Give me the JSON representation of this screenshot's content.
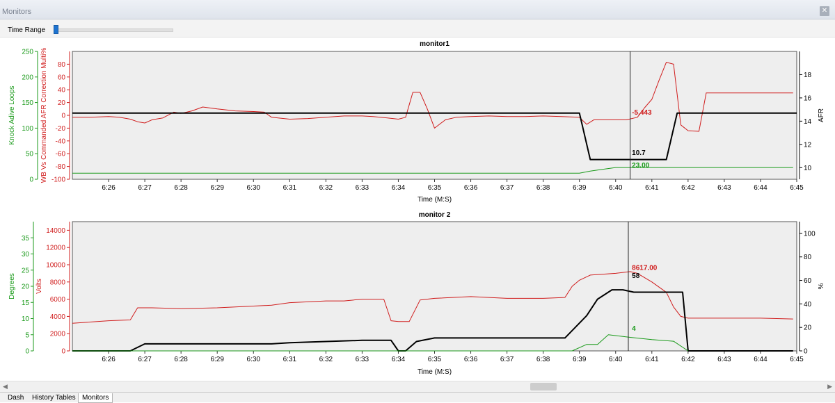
{
  "window": {
    "title": "Monitors"
  },
  "icons": {
    "close": "close-icon"
  },
  "time_range": {
    "label": "Time Range",
    "value": 0.0
  },
  "tabs": [
    {
      "label": "Dash",
      "active": false
    },
    {
      "label": "History Tables",
      "active": false
    },
    {
      "label": "Monitors",
      "active": true
    }
  ],
  "chart_data": [
    {
      "type": "line",
      "title": "monitor1",
      "xlabel": "Time (M:S)",
      "x_ticks": [
        "6:26",
        "6:27",
        "6:28",
        "6:29",
        "6:30",
        "6:31",
        "6:32",
        "6:33",
        "6:34",
        "6:35",
        "6:36",
        "6:37",
        "6:38",
        "6:39",
        "6:40",
        "6:41",
        "6:42",
        "6:43",
        "6:44",
        "6:45"
      ],
      "x_range": [
        385,
        405
      ],
      "cursor_x": 400.4,
      "grid": false,
      "axes": [
        {
          "id": "knock",
          "side": "left",
          "label": "Knock Adive Loops",
          "color": "#1a9a1a",
          "ylim": [
            0,
            250
          ],
          "ticks": [
            0,
            50,
            100,
            150,
            200,
            250
          ]
        },
        {
          "id": "wb",
          "side": "left",
          "label": "WB Vs Commanded AFR Correction Multi%",
          "color": "#d01c1c",
          "ylim": [
            -100,
            100
          ],
          "ticks": [
            -100,
            -80,
            -60,
            -40,
            -20,
            0,
            20,
            40,
            60,
            80
          ]
        },
        {
          "id": "afr",
          "side": "right",
          "label": "AFR",
          "color": "#000000",
          "ylim": [
            9,
            20
          ],
          "ticks": [
            10,
            12,
            14,
            16,
            18
          ]
        }
      ],
      "series": [
        {
          "axis": "wb",
          "color": "#d01c1c",
          "width": 1,
          "x": [
            385,
            385.5,
            386,
            386.3,
            386.6,
            386.8,
            387,
            387.2,
            387.5,
            387.8,
            388,
            388.3,
            388.6,
            389,
            389.5,
            390,
            390.3,
            390.5,
            391,
            391.5,
            392,
            392.5,
            393,
            393.3,
            393.7,
            394,
            394.2,
            394.4,
            394.6,
            394.8,
            395,
            395.3,
            395.6,
            396,
            396.5,
            397,
            397.5,
            398,
            398.5,
            399,
            399.2,
            399.4,
            399.6,
            400,
            400.3,
            400.6,
            400.8,
            401,
            401.2,
            401.4,
            401.6,
            401.8,
            402,
            402.3,
            402.5,
            402.8,
            403,
            404,
            404.9
          ],
          "y": [
            -3,
            -3,
            -2,
            -3,
            -6,
            -10,
            -12,
            -7,
            -4,
            5,
            3,
            7,
            13,
            10,
            7,
            6,
            5,
            -3,
            -6,
            -5,
            -3,
            -1,
            -1,
            -2,
            -4,
            -6,
            -3,
            36,
            36,
            10,
            -20,
            -7,
            -3,
            -2,
            -1,
            -2,
            -2,
            -1,
            -2,
            -3,
            -14,
            -7,
            -7,
            -7,
            -7,
            -3,
            12,
            25,
            55,
            83,
            80,
            -15,
            -24,
            -25,
            35,
            35,
            35,
            35,
            35
          ]
        },
        {
          "axis": "afr",
          "color": "#000000",
          "width": 2,
          "x": [
            385,
            399.0,
            399.3,
            400.0,
            401.0,
            401.4,
            401.7,
            402.0,
            405
          ],
          "y": [
            14.7,
            14.7,
            10.7,
            10.7,
            10.7,
            10.7,
            14.7,
            14.7,
            14.7
          ]
        },
        {
          "axis": "knock",
          "color": "#1a9a1a",
          "width": 1,
          "x": [
            385,
            399.0,
            399.3,
            399.6,
            400.0,
            400.5,
            402.0,
            404.9
          ],
          "y": [
            12,
            12,
            16,
            19,
            23,
            23,
            23,
            23
          ]
        }
      ],
      "annotations": [
        {
          "text": "-5.443",
          "color": "#d01c1c",
          "x": 400.45,
          "y": 1,
          "axis": "wb"
        },
        {
          "text": "10.7",
          "color": "#000000",
          "x": 400.45,
          "y": 11.1,
          "axis": "afr"
        },
        {
          "text": "23.00",
          "color": "#1a9a1a",
          "x": 400.45,
          "y": 23,
          "axis": "knock"
        }
      ]
    },
    {
      "type": "line",
      "title": "monitor 2",
      "xlabel": "Time (M:S)",
      "x_ticks": [
        "6:26",
        "6:27",
        "6:28",
        "6:29",
        "6:30",
        "6:31",
        "6:32",
        "6:33",
        "6:34",
        "6:35",
        "6:36",
        "6:37",
        "6:38",
        "6:39",
        "6:40",
        "6:41",
        "6:42",
        "6:43",
        "6:44",
        "6:45"
      ],
      "x_range": [
        385,
        405
      ],
      "cursor_x": 400.35,
      "grid": false,
      "axes": [
        {
          "id": "deg",
          "side": "left",
          "label": "Degrees",
          "color": "#1a9a1a",
          "ylim": [
            0,
            40
          ],
          "ticks": [
            0,
            5,
            10,
            15,
            20,
            25,
            30,
            35
          ]
        },
        {
          "id": "volts",
          "side": "left",
          "label": "Volts",
          "color": "#d01c1c",
          "ylim": [
            0,
            15000
          ],
          "ticks": [
            0,
            2000,
            4000,
            6000,
            8000,
            10000,
            12000,
            14000
          ]
        },
        {
          "id": "pct",
          "side": "right",
          "label": "%",
          "color": "#000000",
          "ylim": [
            0,
            110
          ],
          "ticks": [
            0,
            20,
            40,
            60,
            80,
            100
          ]
        }
      ],
      "series": [
        {
          "axis": "volts",
          "color": "#d01c1c",
          "width": 1,
          "x": [
            385,
            386,
            386.6,
            386.8,
            387.2,
            388,
            389,
            390,
            390.5,
            391,
            392,
            392.5,
            393,
            393.5,
            393.6,
            393.8,
            394,
            394.3,
            394.6,
            395,
            396,
            397,
            398,
            398.6,
            398.8,
            399,
            399.3,
            400,
            400.4,
            400.6,
            401.0,
            401.4,
            401.6,
            401.8,
            402,
            403,
            404,
            404.9
          ],
          "y": [
            3200,
            3500,
            3600,
            5000,
            5000,
            4900,
            5000,
            5200,
            5300,
            5600,
            5800,
            5800,
            6000,
            6000,
            6000,
            3500,
            3400,
            3400,
            5900,
            6100,
            6300,
            6100,
            6100,
            6200,
            7500,
            8200,
            8800,
            9000,
            9200,
            9000,
            8000,
            6800,
            5100,
            4000,
            3800,
            3800,
            3800,
            3700
          ]
        },
        {
          "axis": "pct",
          "color": "#000000",
          "width": 2,
          "x": [
            385,
            386.6,
            387,
            387.3,
            388,
            389,
            390,
            390.5,
            391,
            392,
            393,
            393.6,
            393.8,
            394,
            394.2,
            394.5,
            395,
            396,
            397,
            398,
            398.6,
            399.2,
            399.5,
            399.9,
            400.2,
            400.5,
            401,
            401.6,
            401.85,
            402,
            404.9
          ],
          "y": [
            0,
            0,
            6,
            6,
            6,
            6,
            6,
            6,
            7,
            8,
            9,
            9,
            9,
            0,
            0,
            8,
            11,
            11,
            11,
            11,
            11,
            30,
            44,
            52,
            52,
            50,
            50,
            50,
            50,
            0,
            0
          ]
        },
        {
          "axis": "deg",
          "color": "#1a9a1a",
          "width": 1,
          "x": [
            385,
            398.8,
            399.2,
            399.5,
            399.8,
            400.4,
            401,
            401.6,
            402
          ],
          "y": [
            0,
            0,
            2,
            2,
            5,
            4.2,
            3.5,
            3,
            0
          ]
        }
      ],
      "annotations": [
        {
          "text": "8617.00",
          "color": "#d01c1c",
          "x": 400.45,
          "y": 9400,
          "axis": "volts"
        },
        {
          "text": "58",
          "color": "#000000",
          "x": 400.45,
          "y": 62,
          "axis": "pct"
        },
        {
          "text": "4",
          "color": "#1a9a1a",
          "x": 400.45,
          "y": 6.2,
          "axis": "deg"
        }
      ]
    }
  ]
}
